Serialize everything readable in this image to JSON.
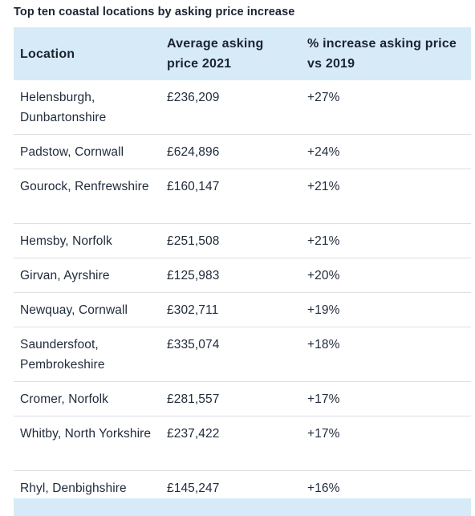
{
  "caption": "Top ten coastal locations by asking price increase",
  "table": {
    "headers": {
      "location": "Location",
      "avg_price": "Average asking price 2021",
      "increase": "% increase asking price vs 2019"
    },
    "rows": [
      {
        "location": "Helensburgh, Dunbartonshire",
        "price": "£236,209",
        "increase": "+27%"
      },
      {
        "location": "Padstow, Cornwall",
        "price": "£624,896",
        "increase": "+24%"
      },
      {
        "location": "Gourock, Renfrewshire",
        "price": "£160,147",
        "increase": "+21%"
      },
      {
        "location": "Hemsby, Norfolk",
        "price": "£251,508",
        "increase": "+21%"
      },
      {
        "location": "Girvan, Ayrshire",
        "price": "£125,983",
        "increase": "+20%"
      },
      {
        "location": "Newquay, Cornwall",
        "price": "£302,711",
        "increase": "+19%"
      },
      {
        "location": "Saundersfoot, Pembrokeshire",
        "price": "£335,074",
        "increase": "+18%"
      },
      {
        "location": "Cromer, Norfolk",
        "price": "£281,557",
        "increase": "+17%"
      },
      {
        "location": "Whitby, North Yorkshire",
        "price": "£237,422",
        "increase": "+17%"
      },
      {
        "location": "Rhyl, Denbighshire",
        "price": "£145,247",
        "increase": "+16%"
      }
    ]
  },
  "colors": {
    "header_bg": "#d6ebf7",
    "row_divider": "#dcdfe3",
    "text": "#1f2a3a"
  }
}
